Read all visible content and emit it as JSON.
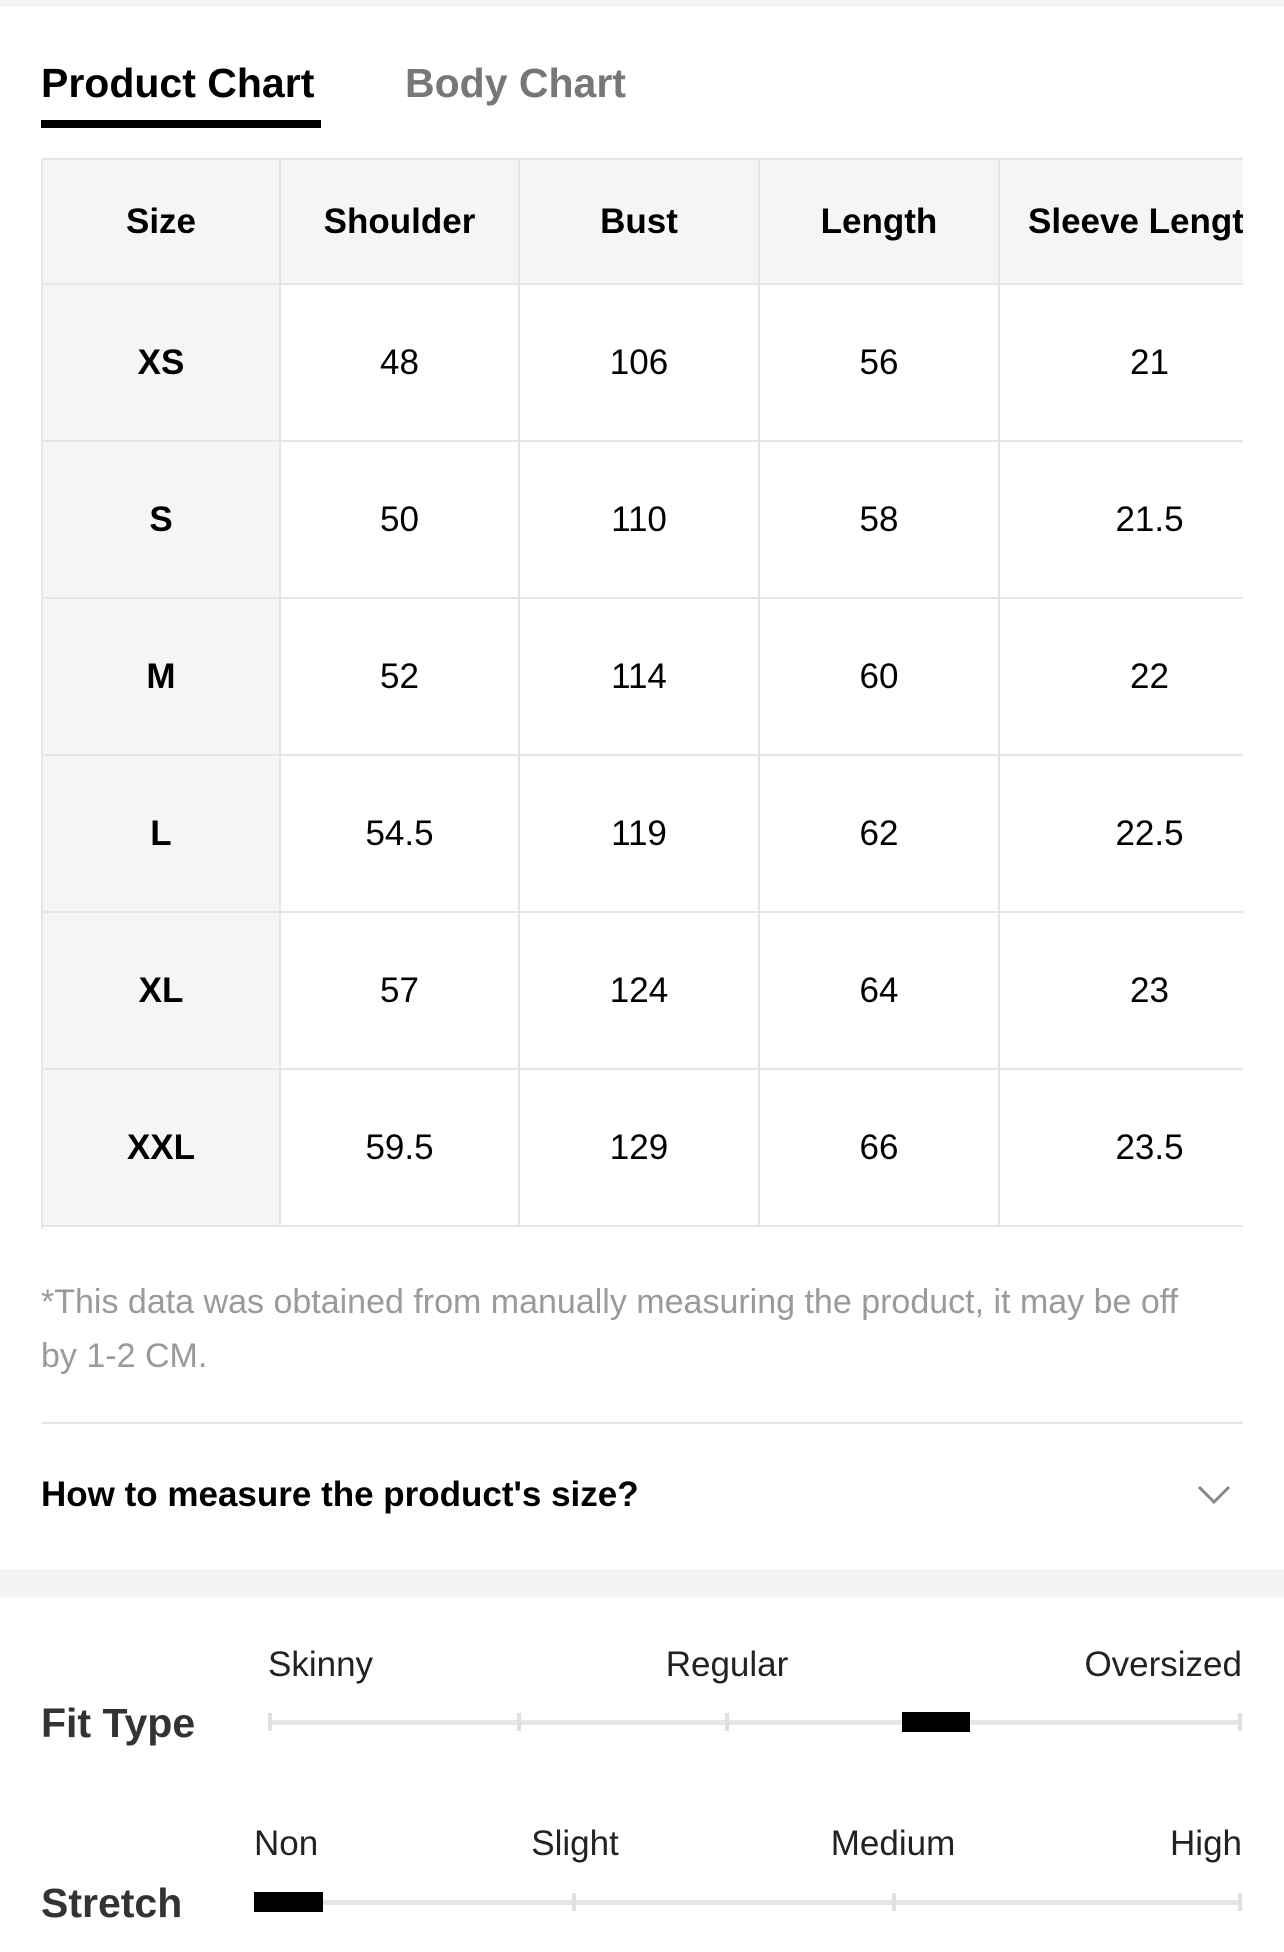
{
  "tabs": [
    "Product Chart",
    "Body Chart"
  ],
  "table": {
    "header": [
      "Size",
      "Shoulder",
      "Bust",
      "Length",
      "Sleeve Length"
    ],
    "rows": [
      [
        "XS",
        "48",
        "106",
        "56",
        "21"
      ],
      [
        "S",
        "50",
        "110",
        "58",
        "21.5"
      ],
      [
        "M",
        "52",
        "114",
        "60",
        "22"
      ],
      [
        "L",
        "54.5",
        "119",
        "62",
        "22.5"
      ],
      [
        "XL",
        "57",
        "124",
        "64",
        "23"
      ],
      [
        "XXL",
        "59.5",
        "129",
        "66",
        "23.5"
      ]
    ]
  },
  "note": "*This data was obtained from manually measuring the product, it may be off by 1-2 CM.",
  "accordion": "How to measure the product's size?",
  "fit_type": {
    "label": "Fit Type",
    "scale": [
      "Skinny",
      "Regular",
      "Oversized"
    ]
  },
  "stretch": {
    "label": "Stretch",
    "scale": [
      "Non",
      "Slight",
      "Medium",
      "High"
    ]
  }
}
